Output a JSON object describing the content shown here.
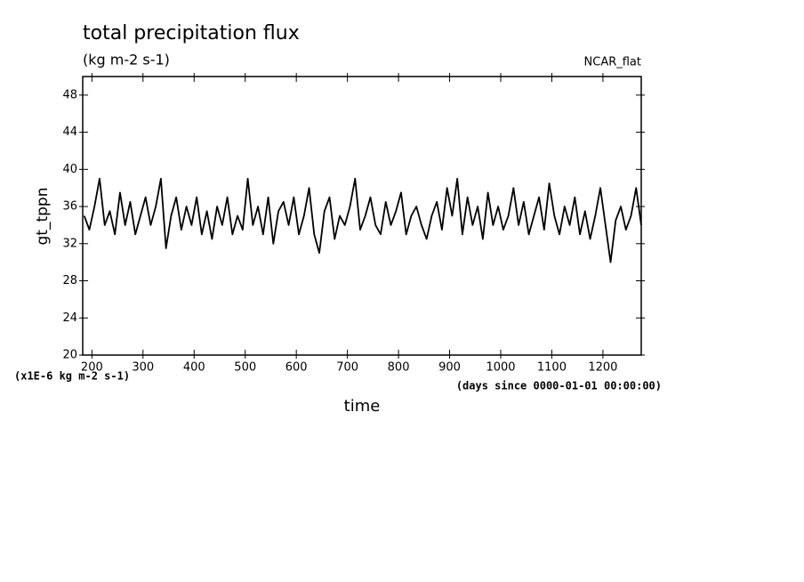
{
  "chart_data": {
    "type": "line",
    "title": "total precipitation flux",
    "subtitle": "(kg m-2 s-1)",
    "annotation": "NCAR_flat",
    "y_label": "gt_tppn",
    "x_label": "time",
    "y_unit": "(x1E-6 kg m-2 s-1)",
    "x_unit": "(days since 0000-01-01 00:00:00)",
    "color": "#000000",
    "xlim": [
      182,
      1275
    ],
    "ylim": [
      20,
      50
    ],
    "xticks": [
      200,
      300,
      400,
      500,
      600,
      700,
      800,
      900,
      1000,
      1100,
      1200
    ],
    "yticks": [
      20,
      24,
      28,
      32,
      36,
      40,
      44,
      48
    ],
    "x": [
      185,
      195,
      205,
      215,
      225,
      235,
      245,
      255,
      265,
      275,
      285,
      295,
      305,
      315,
      325,
      335,
      345,
      355,
      365,
      375,
      385,
      395,
      405,
      415,
      425,
      435,
      445,
      455,
      465,
      475,
      485,
      495,
      505,
      515,
      525,
      535,
      545,
      555,
      565,
      575,
      585,
      595,
      605,
      615,
      625,
      635,
      645,
      655,
      665,
      675,
      685,
      695,
      705,
      715,
      725,
      735,
      745,
      755,
      765,
      775,
      785,
      795,
      805,
      815,
      825,
      835,
      845,
      855,
      865,
      875,
      885,
      895,
      905,
      915,
      925,
      935,
      945,
      955,
      965,
      975,
      985,
      995,
      1005,
      1015,
      1025,
      1035,
      1045,
      1055,
      1065,
      1075,
      1085,
      1095,
      1105,
      1115,
      1125,
      1135,
      1145,
      1155,
      1165,
      1175,
      1185,
      1195,
      1205,
      1215,
      1225,
      1235,
      1245,
      1255,
      1265,
      1275
    ],
    "values": [
      35,
      33.5,
      36,
      39,
      34,
      35.5,
      33,
      37.5,
      34,
      36.5,
      33,
      35,
      37,
      34,
      36,
      39,
      31.5,
      35,
      37,
      33.5,
      36,
      34,
      37,
      33,
      35.5,
      32.5,
      36,
      34,
      37,
      33,
      35,
      33.5,
      39,
      34,
      36,
      33,
      37,
      32,
      35.5,
      36.5,
      34,
      37,
      33,
      35,
      38,
      33,
      31,
      35.5,
      37,
      32.5,
      35,
      34,
      36,
      39,
      33.5,
      35,
      37,
      34,
      33,
      36.5,
      34,
      35.5,
      37.5,
      33,
      35,
      36,
      34,
      32.5,
      35,
      36.5,
      33.5,
      38,
      35,
      39,
      33,
      37,
      34,
      36,
      32.5,
      37.5,
      34,
      36,
      33.5,
      35,
      38,
      34,
      36.5,
      33,
      35,
      37,
      33.5,
      38.5,
      35,
      33,
      36,
      34,
      37,
      33,
      35.5,
      32.5,
      35,
      38,
      34,
      30,
      34.5,
      36,
      33.5,
      35,
      38,
      34
    ]
  }
}
